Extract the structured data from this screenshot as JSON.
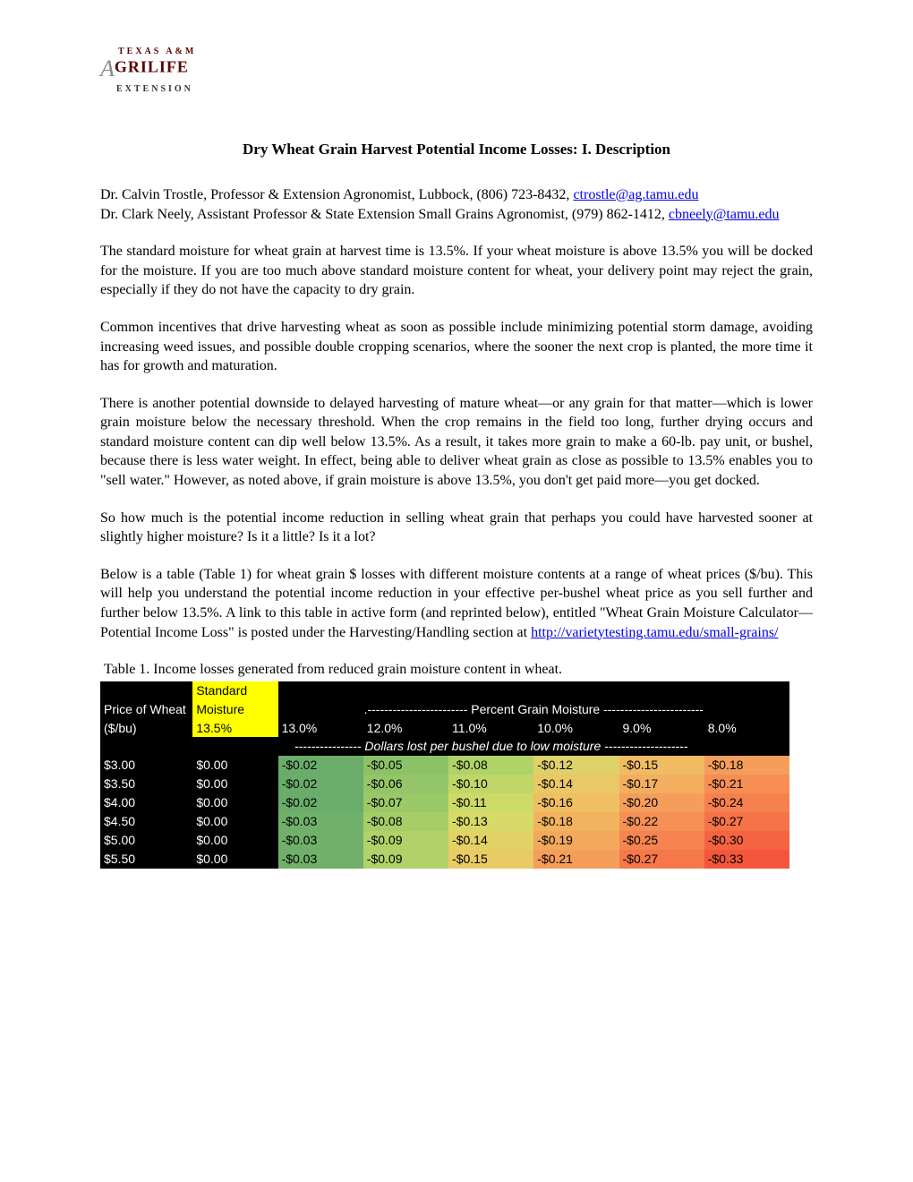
{
  "logo": {
    "line1": "TEXAS A&M",
    "line2": "GRILIFE",
    "line3": "EXTENSION"
  },
  "title": "Dry Wheat Grain Harvest Potential Income Losses:  I. Description",
  "authors": [
    {
      "text": "Dr. Calvin Trostle, Professor & Extension Agronomist, Lubbock, (806) 723-8432, ",
      "email": "ctrostle@ag.tamu.edu"
    },
    {
      "text": "Dr. Clark Neely, Assistant Professor & State Extension Small Grains Agronomist, (979) 862-1412, ",
      "email": "cbneely@tamu.edu"
    }
  ],
  "paragraphs": [
    "The standard moisture for wheat grain at harvest time is 13.5%. If your wheat moisture is above 13.5% you will be docked for the moisture. If you are too much above standard moisture content for wheat, your delivery point may reject the grain, especially if they do not have the capacity to dry grain.",
    "Common incentives that drive harvesting wheat as soon as possible include minimizing potential storm damage, avoiding increasing weed issues, and possible double cropping scenarios, where the sooner the next crop is planted, the more time it has for growth and maturation.",
    "There is another potential downside to delayed harvesting of mature wheat—or any grain for that matter—which is lower grain moisture below the necessary threshold. When the crop remains in the field too long, further drying occurs and standard moisture content can dip well below 13.5%. As a result, it takes more grain to make a 60-lb. pay unit, or bushel, because there is less water weight. In effect, being able to deliver wheat grain as close as possible to 13.5% enables you to \"sell water.\" However, as noted above, if grain moisture is above 13.5%, you don't get paid more—you get docked.",
    "So how much is the potential income reduction in selling wheat grain that perhaps you could have harvested sooner at slightly higher moisture? Is it a little? Is it a lot?"
  ],
  "paragraph_with_link": {
    "before": "Below is a table (Table 1) for wheat grain $ losses with different moisture contents at a range of wheat prices ($/bu). This will help you understand the potential income reduction in your effective per-bushel wheat price as you sell further and further below 13.5%. A link to this table in active form (and reprinted below), entitled \"Wheat Grain Moisture Calculator—Potential Income Loss\" is posted under the Harvesting/Handling section at ",
    "link": "http://varietytesting.tamu.edu/small-grains/"
  },
  "table": {
    "caption": "Table 1. Income losses generated from reduced grain moisture content in wheat.",
    "header": {
      "price_label_top": "Price of Wheat",
      "price_label_bottom": "  ($/bu)",
      "standard_top": "Standard",
      "standard_bottom": "Moisture",
      "standard_value": "13.5%",
      "percent_header": ".------------------------ Percent Grain Moisture ------------------------",
      "dollars_header": "---------------- Dollars lost per bushel due to low moisture --------------------",
      "moisture_cols": [
        "13.0%",
        "12.0%",
        "11.0%",
        "10.0%",
        "9.0%",
        "8.0%"
      ]
    },
    "text_color": "#ffffff",
    "header_bg": "#000000",
    "highlight_bg": "#ffff00",
    "rows": [
      {
        "price": "$3.00",
        "base": "$0.00",
        "values": [
          "-$0.02",
          "-$0.05",
          "-$0.08",
          "-$0.12",
          "-$0.15",
          "-$0.18"
        ],
        "colors": [
          "#6aac6a",
          "#8cc168",
          "#b0d368",
          "#ded16a",
          "#f0bb63",
          "#f59e5b"
        ]
      },
      {
        "price": "$3.50",
        "base": "$0.00",
        "values": [
          "-$0.02",
          "-$0.06",
          "-$0.10",
          "-$0.14",
          "-$0.17",
          "-$0.21"
        ],
        "colors": [
          "#6aac6a",
          "#94c568",
          "#c0d768",
          "#e9c866",
          "#f3ae5f",
          "#f68e54"
        ]
      },
      {
        "price": "$4.00",
        "base": "$0.00",
        "values": [
          "-$0.02",
          "-$0.07",
          "-$0.11",
          "-$0.16",
          "-$0.20",
          "-$0.24"
        ],
        "colors": [
          "#6aac6a",
          "#9cc968",
          "#ccda67",
          "#efbf61",
          "#f59e5b",
          "#f6804e"
        ]
      },
      {
        "price": "$4.50",
        "base": "$0.00",
        "values": [
          "-$0.03",
          "-$0.08",
          "-$0.13",
          "-$0.18",
          "-$0.22",
          "-$0.27"
        ],
        "colors": [
          "#70b06a",
          "#a6cd67",
          "#d8da67",
          "#f2b35f",
          "#f69056",
          "#f67248"
        ]
      },
      {
        "price": "$5.00",
        "base": "$0.00",
        "values": [
          "-$0.03",
          "-$0.09",
          "-$0.14",
          "-$0.19",
          "-$0.25",
          "-$0.30"
        ],
        "colors": [
          "#70b06a",
          "#b0d268",
          "#e2d265",
          "#f3a95c",
          "#f68450",
          "#f56442"
        ]
      },
      {
        "price": "$5.50",
        "base": "$0.00",
        "values": [
          "-$0.03",
          "-$0.09",
          "-$0.15",
          "-$0.21",
          "-$0.27",
          "-$0.33"
        ],
        "colors": [
          "#70b06a",
          "#b0d268",
          "#e9ca64",
          "#f59e5a",
          "#f6784a",
          "#f4563c"
        ]
      }
    ]
  }
}
